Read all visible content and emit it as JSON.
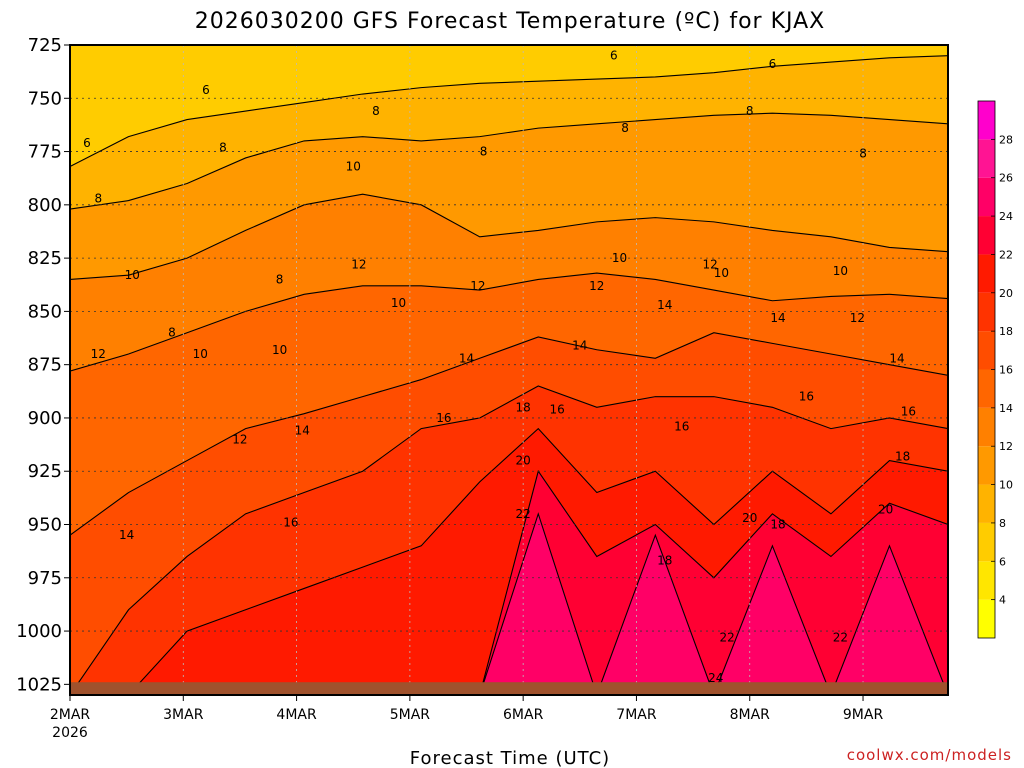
{
  "chart_data": {
    "type": "heatmap",
    "title": "2026030200 GFS Forecast Temperature (ºC) for KJAX",
    "xlabel": "Forecast Time (UTC)",
    "ylabel": "",
    "credit": "coolwx.com/models",
    "x_ticks": [
      "2MAR",
      "3MAR",
      "4MAR",
      "5MAR",
      "6MAR",
      "7MAR",
      "8MAR",
      "9MAR"
    ],
    "x_year": "2026",
    "x_range_days": [
      0,
      7.75
    ],
    "y_ticks": [
      725,
      750,
      775,
      800,
      825,
      850,
      875,
      900,
      925,
      950,
      975,
      1000,
      1025
    ],
    "y_range_hpa": [
      725,
      1030
    ],
    "colorbar": {
      "ticks": [
        4,
        6,
        8,
        10,
        12,
        14,
        16,
        18,
        20,
        22,
        24,
        26,
        28
      ],
      "min": 2,
      "max": 30,
      "colors": [
        "#ffff00",
        "#ffe600",
        "#ffcc00",
        "#ffb300",
        "#ff9900",
        "#ff8000",
        "#ff6600",
        "#ff4d00",
        "#ff3300",
        "#ff1a00",
        "#ff0033",
        "#ff0066",
        "#ff1493",
        "#ff00cc"
      ]
    },
    "series": [
      {
        "name": "6",
        "pressure": [
          782,
          768,
          760,
          756,
          752,
          748,
          745,
          743,
          742,
          741,
          740,
          738,
          735,
          733,
          731,
          730
        ]
      },
      {
        "name": "8",
        "pressure": [
          802,
          798,
          790,
          778,
          770,
          768,
          770,
          768,
          764,
          762,
          760,
          758,
          757,
          758,
          760,
          762
        ]
      },
      {
        "name": "10",
        "pressure": [
          835,
          833,
          825,
          812,
          800,
          795,
          800,
          815,
          812,
          808,
          806,
          808,
          812,
          815,
          820,
          822
        ]
      },
      {
        "name": "12",
        "pressure": [
          878,
          870,
          860,
          850,
          842,
          838,
          838,
          840,
          835,
          832,
          835,
          840,
          845,
          843,
          842,
          844
        ]
      },
      {
        "name": "14",
        "pressure": [
          955,
          935,
          920,
          905,
          898,
          890,
          882,
          872,
          862,
          868,
          872,
          860,
          865,
          870,
          875,
          880
        ]
      },
      {
        "name": "16",
        "pressure": [
          1030,
          990,
          965,
          945,
          935,
          925,
          905,
          900,
          885,
          895,
          890,
          890,
          895,
          905,
          900,
          905
        ]
      },
      {
        "name": "18",
        "pressure": [
          1030,
          1030,
          1000,
          990,
          980,
          970,
          960,
          930,
          905,
          935,
          925,
          950,
          925,
          945,
          920,
          925
        ]
      },
      {
        "name": "20",
        "pressure": [
          1030,
          1030,
          1030,
          1030,
          1030,
          1030,
          1030,
          1030,
          925,
          965,
          950,
          975,
          945,
          965,
          940,
          950
        ]
      },
      {
        "name": "22",
        "pressure": [
          1030,
          1030,
          1030,
          1030,
          1030,
          1030,
          1030,
          1030,
          945,
          1030,
          955,
          1030,
          960,
          1030,
          960,
          1030
        ]
      }
    ],
    "contour_labels": [
      {
        "text": "6",
        "day": 1.2,
        "p": 746
      },
      {
        "text": "6",
        "day": 0.15,
        "p": 771
      },
      {
        "text": "6",
        "day": 4.8,
        "p": 730
      },
      {
        "text": "6",
        "day": 6.2,
        "p": 734
      },
      {
        "text": "8",
        "day": 0.25,
        "p": 797
      },
      {
        "text": "8",
        "day": 1.35,
        "p": 773
      },
      {
        "text": "8",
        "day": 2.7,
        "p": 756
      },
      {
        "text": "8",
        "day": 3.65,
        "p": 775
      },
      {
        "text": "8",
        "day": 4.9,
        "p": 764
      },
      {
        "text": "8",
        "day": 6.0,
        "p": 756
      },
      {
        "text": "8",
        "day": 7.0,
        "p": 776
      },
      {
        "text": "8",
        "day": 0.9,
        "p": 860
      },
      {
        "text": "8",
        "day": 1.85,
        "p": 835
      },
      {
        "text": "10",
        "day": 0.55,
        "p": 833
      },
      {
        "text": "10",
        "day": 2.5,
        "p": 782
      },
      {
        "text": "10",
        "day": 1.15,
        "p": 870
      },
      {
        "text": "10",
        "day": 1.85,
        "p": 868
      },
      {
        "text": "10",
        "day": 2.9,
        "p": 846
      },
      {
        "text": "10",
        "day": 4.85,
        "p": 825
      },
      {
        "text": "10",
        "day": 5.75,
        "p": 832
      },
      {
        "text": "10",
        "day": 6.8,
        "p": 831
      },
      {
        "text": "12",
        "day": 0.25,
        "p": 870
      },
      {
        "text": "12",
        "day": 1.5,
        "p": 910
      },
      {
        "text": "12",
        "day": 2.55,
        "p": 828
      },
      {
        "text": "12",
        "day": 3.6,
        "p": 838
      },
      {
        "text": "12",
        "day": 4.65,
        "p": 838
      },
      {
        "text": "12",
        "day": 5.65,
        "p": 828
      },
      {
        "text": "12",
        "day": 6.95,
        "p": 853
      },
      {
        "text": "14",
        "day": 0.5,
        "p": 955
      },
      {
        "text": "14",
        "day": 2.05,
        "p": 906
      },
      {
        "text": "14",
        "day": 3.5,
        "p": 872
      },
      {
        "text": "14",
        "day": 4.5,
        "p": 866
      },
      {
        "text": "14",
        "day": 5.25,
        "p": 847
      },
      {
        "text": "14",
        "day": 6.25,
        "p": 853
      },
      {
        "text": "14",
        "day": 7.3,
        "p": 872
      },
      {
        "text": "16",
        "day": 1.95,
        "p": 949
      },
      {
        "text": "16",
        "day": 3.3,
        "p": 900
      },
      {
        "text": "16",
        "day": 4.3,
        "p": 896
      },
      {
        "text": "16",
        "day": 5.4,
        "p": 904
      },
      {
        "text": "16",
        "day": 6.5,
        "p": 890
      },
      {
        "text": "16",
        "day": 7.4,
        "p": 897
      },
      {
        "text": "18",
        "day": 4.0,
        "p": 895
      },
      {
        "text": "18",
        "day": 5.25,
        "p": 967
      },
      {
        "text": "18",
        "day": 6.25,
        "p": 950
      },
      {
        "text": "18",
        "day": 7.35,
        "p": 918
      },
      {
        "text": "20",
        "day": 4.0,
        "p": 920
      },
      {
        "text": "20",
        "day": 6.0,
        "p": 947
      },
      {
        "text": "20",
        "day": 7.2,
        "p": 943
      },
      {
        "text": "22",
        "day": 4.0,
        "p": 945
      },
      {
        "text": "22",
        "day": 5.8,
        "p": 1003
      },
      {
        "text": "22",
        "day": 6.8,
        "p": 1003
      },
      {
        "text": "24",
        "day": 5.7,
        "p": 1022
      }
    ]
  }
}
